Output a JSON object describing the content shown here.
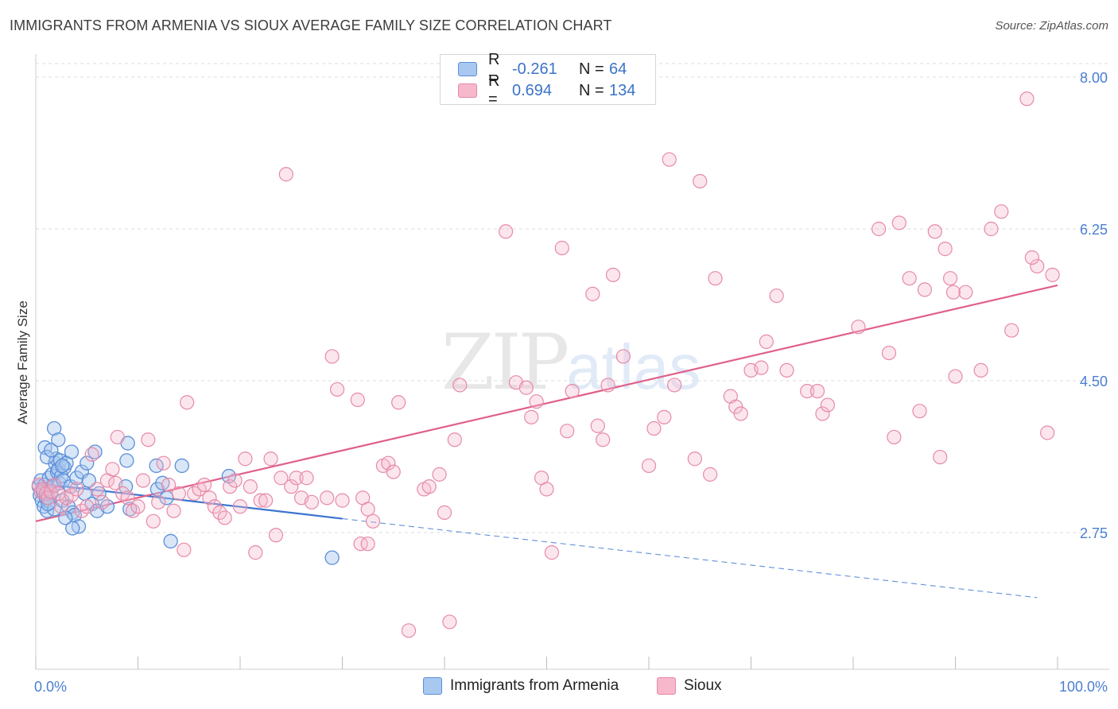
{
  "header": {
    "title": "IMMIGRANTS FROM ARMENIA VS SIOUX AVERAGE FAMILY SIZE CORRELATION CHART",
    "source": "Source: ZipAtlas.com"
  },
  "watermark": {
    "zip": "ZIP",
    "atlas": "atlas"
  },
  "legend": {
    "rows": [
      {
        "r_label": "R =",
        "r_value": "-0.261",
        "n_label": "N =",
        "n_value": "64"
      },
      {
        "r_label": "R =",
        "r_value": "0.694",
        "n_label": "N =",
        "n_value": "134"
      }
    ]
  },
  "bottom_legend": {
    "items": [
      {
        "label": "Immigrants from Armenia"
      },
      {
        "label": "Sioux"
      }
    ]
  },
  "colors": {
    "armenia_fill": "#a9c8f0",
    "armenia_stroke": "#5b8fd8",
    "armenia_line": "#3a74d0",
    "sioux_fill": "#f7b8cb",
    "sioux_stroke": "#e68aa8",
    "sioux_line": "#e0608a",
    "grid": "#dcdcdc",
    "tick_text": "#4a7fd1"
  },
  "chart_data": {
    "type": "scatter",
    "title": "IMMIGRANTS FROM ARMENIA VS SIOUX AVERAGE FAMILY SIZE CORRELATION CHART",
    "xlabel": "",
    "ylabel": "Average Family Size",
    "xlim": [
      0,
      100
    ],
    "ylim": [
      1.35,
      8.3
    ],
    "x_tick_labels": [
      "0.0%",
      "100.0%"
    ],
    "y_ticks": [
      2.75,
      4.5,
      6.25,
      8.0
    ],
    "y_tick_labels": [
      "2.75",
      "4.50",
      "6.25",
      "8.00"
    ],
    "grid": true,
    "legend_position": "top-center",
    "series": [
      {
        "name": "Immigrants from Armenia",
        "r": -0.261,
        "n": 64,
        "trend": {
          "x0": 0,
          "y0": 3.32,
          "x1": 30,
          "y1": 2.91,
          "dashed_to_x": 98,
          "dashed_to_y": 2.0
        },
        "points": [
          [
            0.3,
            3.28
          ],
          [
            0.4,
            3.18
          ],
          [
            0.5,
            3.35
          ],
          [
            0.6,
            3.12
          ],
          [
            0.7,
            3.22
          ],
          [
            0.8,
            3.05
          ],
          [
            0.9,
            3.3
          ],
          [
            1.0,
            3.15
          ],
          [
            1.1,
            3.0
          ],
          [
            1.2,
            3.25
          ],
          [
            1.3,
            3.38
          ],
          [
            1.4,
            3.1
          ],
          [
            1.5,
            3.2
          ],
          [
            1.6,
            3.42
          ],
          [
            1.7,
            3.28
          ],
          [
            1.8,
            3.02
          ],
          [
            1.9,
            3.55
          ],
          [
            2.0,
            3.6
          ],
          [
            2.1,
            3.45
          ],
          [
            2.2,
            3.48
          ],
          [
            2.3,
            3.32
          ],
          [
            2.4,
            3.58
          ],
          [
            2.5,
            3.4
          ],
          [
            2.6,
            3.12
          ],
          [
            2.7,
            3.35
          ],
          [
            2.8,
            3.5
          ],
          [
            3.0,
            3.55
          ],
          [
            3.2,
            3.05
          ],
          [
            3.4,
            3.28
          ],
          [
            3.6,
            2.98
          ],
          [
            3.8,
            2.95
          ],
          [
            4.0,
            3.38
          ],
          [
            0.9,
            3.73
          ],
          [
            1.1,
            3.62
          ],
          [
            1.5,
            3.7
          ],
          [
            1.8,
            3.95
          ],
          [
            2.2,
            3.82
          ],
          [
            2.6,
            3.52
          ],
          [
            3.5,
            3.68
          ],
          [
            4.2,
            2.82
          ],
          [
            3.6,
            2.8
          ],
          [
            4.5,
            3.45
          ],
          [
            5.0,
            3.55
          ],
          [
            4.8,
            3.2
          ],
          [
            5.5,
            3.08
          ],
          [
            6.0,
            3.0
          ],
          [
            5.2,
            3.35
          ],
          [
            5.8,
            3.68
          ],
          [
            6.2,
            3.2
          ],
          [
            7.0,
            3.05
          ],
          [
            8.8,
            3.28
          ],
          [
            8.9,
            3.58
          ],
          [
            9.0,
            3.78
          ],
          [
            9.2,
            3.02
          ],
          [
            11.8,
            3.52
          ],
          [
            11.9,
            3.25
          ],
          [
            12.4,
            3.32
          ],
          [
            12.8,
            3.15
          ],
          [
            13.2,
            2.65
          ],
          [
            14.3,
            3.52
          ],
          [
            18.9,
            3.4
          ],
          [
            29.0,
            2.46
          ],
          [
            1.2,
            3.08
          ],
          [
            2.9,
            2.92
          ]
        ]
      },
      {
        "name": "Sioux",
        "r": 0.694,
        "n": 134,
        "trend": {
          "x0": 0,
          "y0": 2.88,
          "x1": 100,
          "y1": 5.6
        },
        "points": [
          [
            0.3,
            3.3
          ],
          [
            0.5,
            3.22
          ],
          [
            0.7,
            3.25
          ],
          [
            1.0,
            3.2
          ],
          [
            1.2,
            3.15
          ],
          [
            1.5,
            3.22
          ],
          [
            1.8,
            3.3
          ],
          [
            2.2,
            3.2
          ],
          [
            2.5,
            3.05
          ],
          [
            3.0,
            3.15
          ],
          [
            3.5,
            3.18
          ],
          [
            4.0,
            3.25
          ],
          [
            4.5,
            3.0
          ],
          [
            5.0,
            3.05
          ],
          [
            5.5,
            3.65
          ],
          [
            6.0,
            3.25
          ],
          [
            6.5,
            3.1
          ],
          [
            7.0,
            3.35
          ],
          [
            7.5,
            3.48
          ],
          [
            7.8,
            3.32
          ],
          [
            8.0,
            3.85
          ],
          [
            8.5,
            3.2
          ],
          [
            9.0,
            3.15
          ],
          [
            9.5,
            3.0
          ],
          [
            10.0,
            3.05
          ],
          [
            10.5,
            3.35
          ],
          [
            11.0,
            3.82
          ],
          [
            11.5,
            2.88
          ],
          [
            12.0,
            3.1
          ],
          [
            12.5,
            3.55
          ],
          [
            13.0,
            3.3
          ],
          [
            13.5,
            3.0
          ],
          [
            14.0,
            3.2
          ],
          [
            14.5,
            2.55
          ],
          [
            14.8,
            4.25
          ],
          [
            15.5,
            3.2
          ],
          [
            16.0,
            3.25
          ],
          [
            16.5,
            3.3
          ],
          [
            17.0,
            3.15
          ],
          [
            17.5,
            3.05
          ],
          [
            18.0,
            2.98
          ],
          [
            18.5,
            2.92
          ],
          [
            19.0,
            3.28
          ],
          [
            19.5,
            3.35
          ],
          [
            20.0,
            3.05
          ],
          [
            20.5,
            3.6
          ],
          [
            21.0,
            3.28
          ],
          [
            21.5,
            2.52
          ],
          [
            22.0,
            3.12
          ],
          [
            22.5,
            3.12
          ],
          [
            23.0,
            3.6
          ],
          [
            23.5,
            2.72
          ],
          [
            24.0,
            3.38
          ],
          [
            24.5,
            6.88
          ],
          [
            25.0,
            3.28
          ],
          [
            25.5,
            3.38
          ],
          [
            26.0,
            3.15
          ],
          [
            26.5,
            3.38
          ],
          [
            27.0,
            3.1
          ],
          [
            28.5,
            3.15
          ],
          [
            29.0,
            4.78
          ],
          [
            29.5,
            4.4
          ],
          [
            30.0,
            3.12
          ],
          [
            31.5,
            4.28
          ],
          [
            31.8,
            2.62
          ],
          [
            32.0,
            3.15
          ],
          [
            32.5,
            3.02
          ],
          [
            32.5,
            2.62
          ],
          [
            33.0,
            2.88
          ],
          [
            34.0,
            3.52
          ],
          [
            34.5,
            3.55
          ],
          [
            35.0,
            3.45
          ],
          [
            35.5,
            4.25
          ],
          [
            36.5,
            1.62
          ],
          [
            38.0,
            3.25
          ],
          [
            38.5,
            3.28
          ],
          [
            39.5,
            3.42
          ],
          [
            40.0,
            2.98
          ],
          [
            40.5,
            1.72
          ],
          [
            41.0,
            3.82
          ],
          [
            41.5,
            4.45
          ],
          [
            46.0,
            6.22
          ],
          [
            47.0,
            4.48
          ],
          [
            48.0,
            4.42
          ],
          [
            48.5,
            4.08
          ],
          [
            49.0,
            4.26
          ],
          [
            49.5,
            3.38
          ],
          [
            50.0,
            3.25
          ],
          [
            50.5,
            2.52
          ],
          [
            51.5,
            6.03
          ],
          [
            52.0,
            3.92
          ],
          [
            52.5,
            4.38
          ],
          [
            54.5,
            5.5
          ],
          [
            55.0,
            3.98
          ],
          [
            55.5,
            3.82
          ],
          [
            56.0,
            4.45
          ],
          [
            56.5,
            5.72
          ],
          [
            57.5,
            4.78
          ],
          [
            60.0,
            3.52
          ],
          [
            60.5,
            3.95
          ],
          [
            61.5,
            4.08
          ],
          [
            62.0,
            7.05
          ],
          [
            62.5,
            4.45
          ],
          [
            64.5,
            3.6
          ],
          [
            65.0,
            6.8
          ],
          [
            66.0,
            3.42
          ],
          [
            66.5,
            5.68
          ],
          [
            68.0,
            4.32
          ],
          [
            68.5,
            4.2
          ],
          [
            69.0,
            4.12
          ],
          [
            70.0,
            4.62
          ],
          [
            71.0,
            4.65
          ],
          [
            71.5,
            4.95
          ],
          [
            72.5,
            5.48
          ],
          [
            73.5,
            4.62
          ],
          [
            75.5,
            4.38
          ],
          [
            76.5,
            4.38
          ],
          [
            77.0,
            4.12
          ],
          [
            77.5,
            4.22
          ],
          [
            80.5,
            5.12
          ],
          [
            82.5,
            6.25
          ],
          [
            83.5,
            4.82
          ],
          [
            84.0,
            3.85
          ],
          [
            84.5,
            6.32
          ],
          [
            85.5,
            5.68
          ],
          [
            86.5,
            4.15
          ],
          [
            87.0,
            5.55
          ],
          [
            88.0,
            6.22
          ],
          [
            88.5,
            3.62
          ],
          [
            89.0,
            6.02
          ],
          [
            89.5,
            5.68
          ],
          [
            89.8,
            5.52
          ],
          [
            90.0,
            4.55
          ],
          [
            91.0,
            5.52
          ],
          [
            92.5,
            4.62
          ],
          [
            93.5,
            6.25
          ],
          [
            94.5,
            6.45
          ],
          [
            95.5,
            5.08
          ],
          [
            97.0,
            7.75
          ],
          [
            98.0,
            5.82
          ],
          [
            99.0,
            3.9
          ],
          [
            99.5,
            5.72
          ],
          [
            97.5,
            5.92
          ]
        ]
      }
    ]
  }
}
